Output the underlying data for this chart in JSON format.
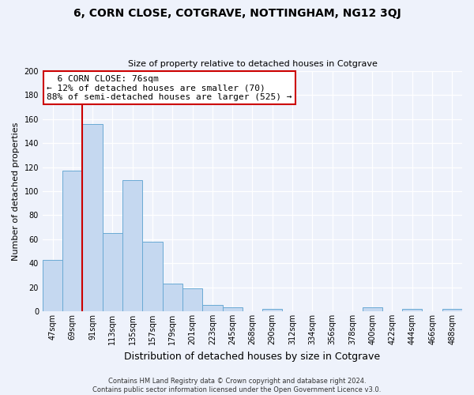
{
  "title": "6, CORN CLOSE, COTGRAVE, NOTTINGHAM, NG12 3QJ",
  "subtitle": "Size of property relative to detached houses in Cotgrave",
  "xlabel": "Distribution of detached houses by size in Cotgrave",
  "ylabel": "Number of detached properties",
  "bar_labels": [
    "47sqm",
    "69sqm",
    "91sqm",
    "113sqm",
    "135sqm",
    "157sqm",
    "179sqm",
    "201sqm",
    "223sqm",
    "245sqm",
    "268sqm",
    "290sqm",
    "312sqm",
    "334sqm",
    "356sqm",
    "378sqm",
    "400sqm",
    "422sqm",
    "444sqm",
    "466sqm",
    "488sqm"
  ],
  "bar_values": [
    43,
    117,
    156,
    65,
    109,
    58,
    23,
    19,
    5,
    3,
    0,
    2,
    0,
    0,
    0,
    0,
    3,
    0,
    2,
    0,
    2
  ],
  "bar_color": "#c5d8f0",
  "bar_edge_color": "#6aaad4",
  "vline_x": 1.5,
  "vline_color": "#cc0000",
  "annotation_title": "6 CORN CLOSE: 76sqm",
  "annotation_line1": "← 12% of detached houses are smaller (70)",
  "annotation_line2": "88% of semi-detached houses are larger (525) →",
  "annotation_box_color": "#ffffff",
  "annotation_box_edge": "#cc0000",
  "ylim": [
    0,
    200
  ],
  "yticks": [
    0,
    20,
    40,
    60,
    80,
    100,
    120,
    140,
    160,
    180,
    200
  ],
  "footer_line1": "Contains HM Land Registry data © Crown copyright and database right 2024.",
  "footer_line2": "Contains public sector information licensed under the Open Government Licence v3.0.",
  "background_color": "#eef2fb",
  "grid_color": "#ffffff",
  "title_fontsize": 10,
  "subtitle_fontsize": 8,
  "ylabel_fontsize": 8,
  "xlabel_fontsize": 9,
  "tick_fontsize": 7,
  "footer_fontsize": 6,
  "annotation_fontsize": 8
}
